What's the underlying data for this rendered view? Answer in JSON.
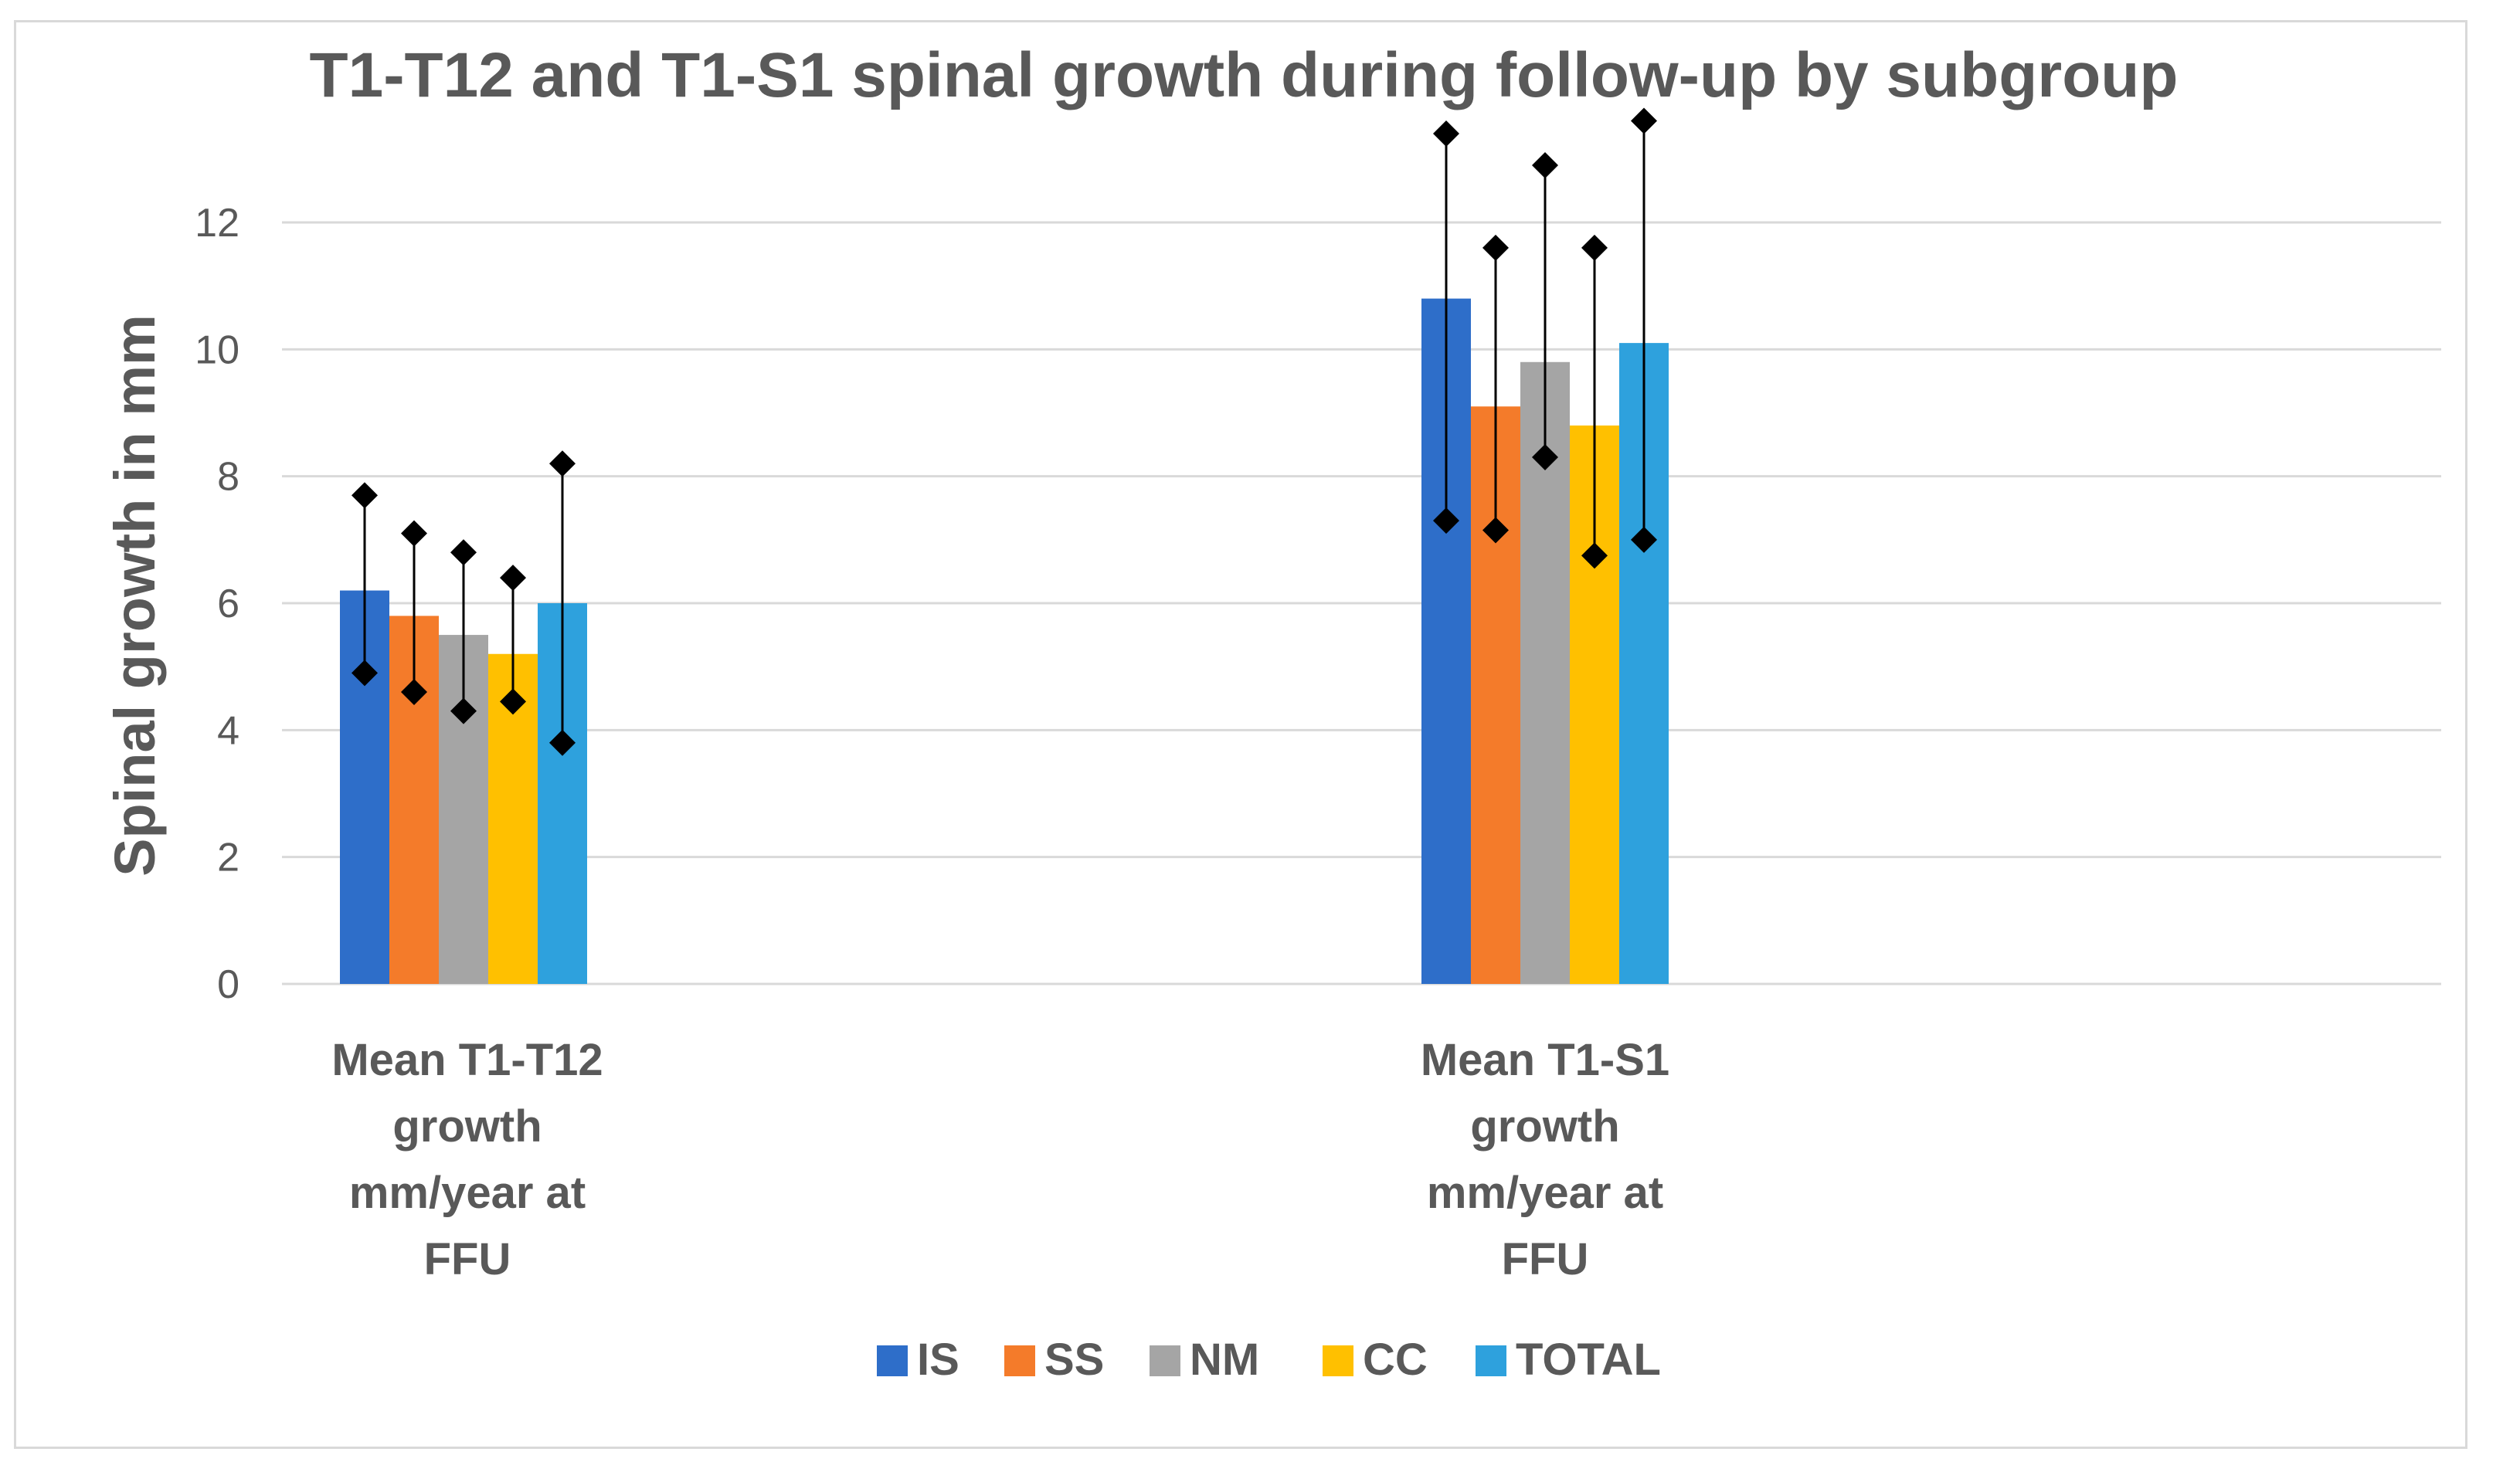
{
  "chart_data": {
    "type": "bar",
    "title": "T1-T12 and T1-S1 spinal growth during follow-up by subgroup",
    "xlabel": "",
    "ylabel": "Spinal growth in mm",
    "ylim": [
      0,
      12
    ],
    "yticks": [
      0,
      2,
      4,
      6,
      8,
      10,
      12
    ],
    "grid": true,
    "legend": "bottom",
    "categories": [
      [
        "Mean T1-T12",
        "growth",
        "mm/year at",
        "FFU"
      ],
      [
        "Mean T1-S1",
        "growth",
        "mm/year at",
        "FFU"
      ]
    ],
    "series": [
      {
        "name": "IS",
        "color": "#2e6ec9",
        "values": [
          6.2,
          10.8
        ],
        "err_low": [
          4.9,
          7.3
        ],
        "err_high": [
          7.7,
          13.4
        ]
      },
      {
        "name": "SS",
        "color": "#f47b2a",
        "values": [
          5.8,
          9.1
        ],
        "err_low": [
          4.6,
          7.15
        ],
        "err_high": [
          7.1,
          11.6
        ]
      },
      {
        "name": "NM",
        "color": "#a5a5a5",
        "values": [
          5.5,
          9.8
        ],
        "err_low": [
          4.3,
          8.3
        ],
        "err_high": [
          6.8,
          12.9
        ]
      },
      {
        "name": "CC",
        "color": "#ffc000",
        "values": [
          5.2,
          8.8
        ],
        "err_low": [
          4.45,
          6.75
        ],
        "err_high": [
          6.4,
          11.6
        ]
      },
      {
        "name": "TOTAL",
        "color": "#2ea1dd",
        "values": [
          6.0,
          10.1
        ],
        "err_low": [
          3.8,
          7.0
        ],
        "err_high": [
          8.2,
          13.6
        ]
      }
    ]
  }
}
